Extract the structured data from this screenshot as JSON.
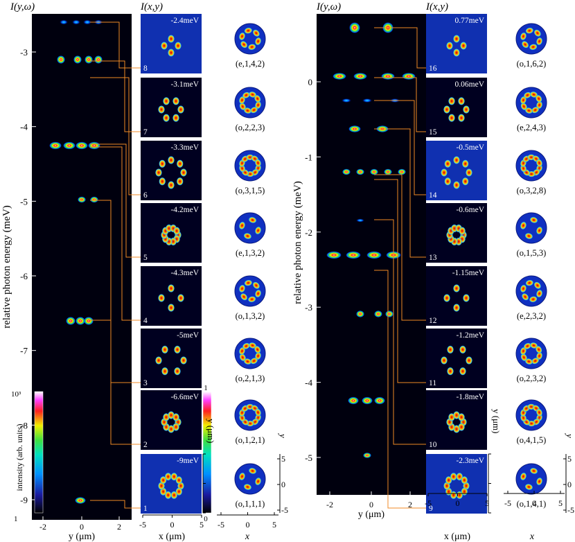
{
  "chart_data": [
    {
      "type": "heatmap",
      "panel": "left",
      "spectrum_title": "I(y,ω)",
      "image_title": "I(x,y)",
      "ylabel": "relative photon energy (meV)",
      "xlabel": "y (μm)",
      "image_xlabel": "x (μm)",
      "image_ylabel": "y (μm)",
      "mode_xlabel": "x",
      "mode_ylabel": "y",
      "ylim": [
        -9.3,
        -2.45
      ],
      "xlim": [
        -2.5,
        2.6
      ],
      "yticks": [
        "-3",
        "-4",
        "-5",
        "-6",
        "-7",
        "-8",
        "-9"
      ],
      "xticks": [
        "-2",
        "0",
        "2"
      ],
      "image_ticks": [
        "-5",
        "0",
        "5"
      ],
      "colorbar": {
        "label": "intensity (arb. units)",
        "top": "10³",
        "bottom": "1"
      },
      "image_colorbar": {
        "top": "1",
        "bottom": "0"
      },
      "modes": [
        {
          "index": "8",
          "energy": "-2.4meV",
          "label": "(e,1,4,2)"
        },
        {
          "index": "7",
          "energy": "-3.1meV",
          "label": "(o,2,2,3)"
        },
        {
          "index": "6",
          "energy": "-3.3meV",
          "label": "(o,3,1,5)"
        },
        {
          "index": "5",
          "energy": "-4.2meV",
          "label": "(e,1,3,2)"
        },
        {
          "index": "4",
          "energy": "-4.3meV",
          "label": "(o,1,3,2)"
        },
        {
          "index": "3",
          "energy": "-5meV",
          "label": "(o,2,1,3)"
        },
        {
          "index": "2",
          "energy": "-6.6meV",
          "label": "(o,1,2,1)"
        },
        {
          "index": "1",
          "energy": "-9meV",
          "label": "(o,1,1,1)"
        }
      ]
    },
    {
      "type": "heatmap",
      "panel": "right",
      "spectrum_title": "I(y,ω)",
      "image_title": "I(x,y)",
      "ylabel": "relative photon energy (meV)",
      "xlabel": "y (μm)",
      "image_xlabel": "x (μm)",
      "image_ylabel": "y (μm)",
      "mode_xlabel": "x",
      "mode_ylabel": "y",
      "ylim": [
        -5.4,
        0.85
      ],
      "xlim": [
        -2.5,
        2.6
      ],
      "yticks": [
        "0",
        "-1",
        "-2",
        "-3",
        "-4",
        "-5"
      ],
      "xticks": [
        "-2",
        "0",
        "2"
      ],
      "image_ticks": [
        "-5",
        "0",
        "5"
      ],
      "modes": [
        {
          "index": "16",
          "energy": "0.77meV",
          "label": "(o,1,6,2)"
        },
        {
          "index": "15",
          "energy": "0.06meV",
          "label": "(e,2,4,3)"
        },
        {
          "index": "14",
          "energy": "-0.5meV",
          "label": "(o,3,2,8)"
        },
        {
          "index": "13",
          "energy": "-0.6meV",
          "label": "(o,1,5,3)"
        },
        {
          "index": "12",
          "energy": "-1.15meV",
          "label": "(e,2,3,2)"
        },
        {
          "index": "11",
          "energy": "-1.2meV",
          "label": "(o,2,3,2)"
        },
        {
          "index": "10",
          "energy": "-1.8meV",
          "label": "(o,4,1,5)"
        },
        {
          "index": "9",
          "energy": "-2.3meV",
          "label": "(o,1,4,1)"
        }
      ]
    }
  ],
  "colors": {
    "connector": "#f08a24",
    "background": "#000010",
    "tick_text": "#ffffff"
  }
}
